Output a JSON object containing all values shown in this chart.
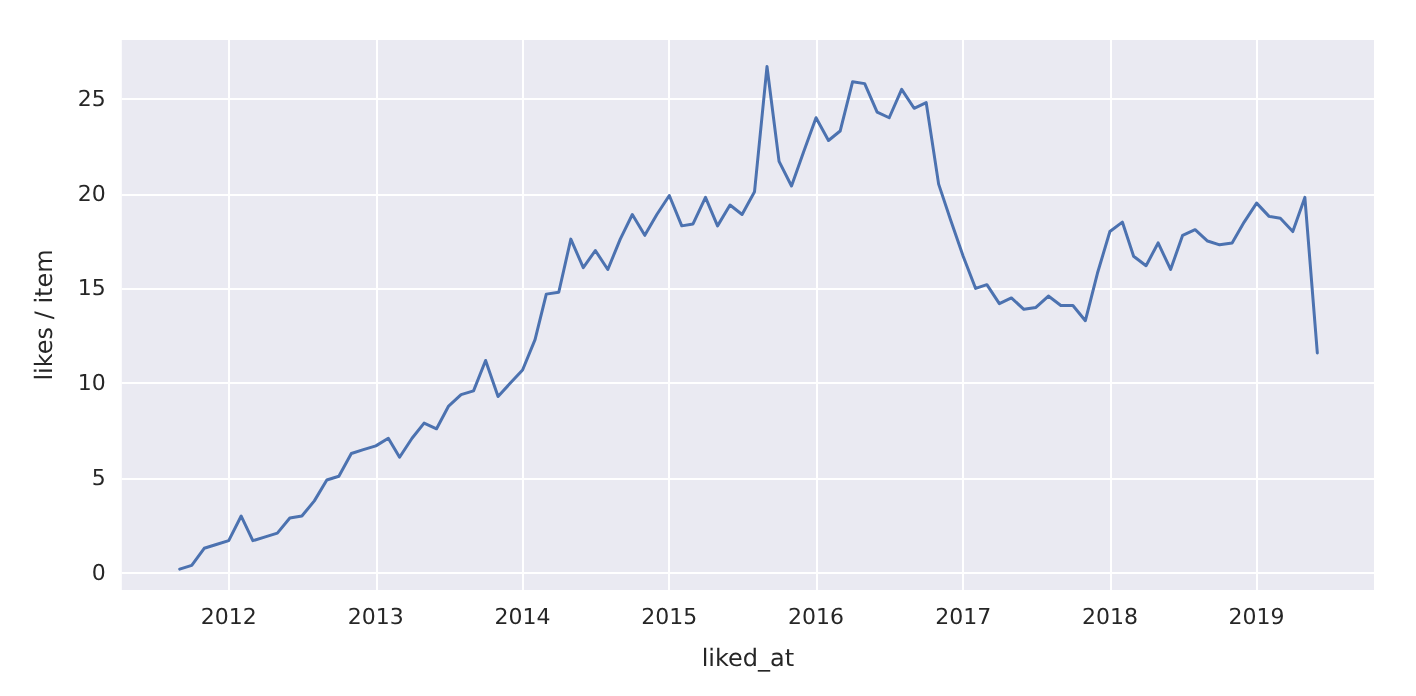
{
  "chart_data": {
    "type": "line",
    "xlabel": "liked_at",
    "ylabel": "likes / item",
    "x": [
      "2011-09",
      "2011-10",
      "2011-11",
      "2011-12",
      "2012-01",
      "2012-02",
      "2012-03",
      "2012-04",
      "2012-05",
      "2012-06",
      "2012-07",
      "2012-08",
      "2012-09",
      "2012-10",
      "2012-11",
      "2012-12",
      "2013-01",
      "2013-02",
      "2013-03",
      "2013-04",
      "2013-05",
      "2013-06",
      "2013-07",
      "2013-08",
      "2013-09",
      "2013-10",
      "2013-11",
      "2013-12",
      "2014-01",
      "2014-02",
      "2014-03",
      "2014-04",
      "2014-05",
      "2014-06",
      "2014-07",
      "2014-08",
      "2014-09",
      "2014-10",
      "2014-11",
      "2014-12",
      "2015-01",
      "2015-02",
      "2015-03",
      "2015-04",
      "2015-05",
      "2015-06",
      "2015-07",
      "2015-08",
      "2015-09",
      "2015-10",
      "2015-11",
      "2015-12",
      "2016-01",
      "2016-02",
      "2016-03",
      "2016-04",
      "2016-05",
      "2016-06",
      "2016-07",
      "2016-08",
      "2016-09",
      "2016-10",
      "2016-11",
      "2016-12",
      "2017-01",
      "2017-02",
      "2017-03",
      "2017-04",
      "2017-05",
      "2017-06",
      "2017-07",
      "2017-08",
      "2017-09",
      "2017-10",
      "2017-11",
      "2017-12",
      "2018-01",
      "2018-02",
      "2018-03",
      "2018-04",
      "2018-05",
      "2018-06",
      "2018-07",
      "2018-08",
      "2018-09",
      "2018-10",
      "2018-11",
      "2018-12",
      "2019-01",
      "2019-02",
      "2019-03",
      "2019-04",
      "2019-05",
      "2019-06"
    ],
    "series": [
      {
        "color": "#4c72b0",
        "values": [
          0.2,
          0.4,
          1.3,
          1.5,
          1.7,
          3.0,
          1.7,
          1.9,
          2.1,
          2.9,
          3.0,
          3.8,
          4.9,
          5.1,
          6.3,
          6.5,
          6.7,
          7.1,
          6.1,
          7.1,
          7.9,
          7.6,
          8.8,
          9.4,
          9.6,
          11.2,
          9.3,
          10.0,
          10.7,
          12.3,
          14.7,
          14.8,
          17.6,
          16.1,
          17.0,
          16.0,
          17.6,
          18.9,
          17.8,
          18.9,
          19.9,
          18.3,
          18.4,
          19.8,
          18.3,
          19.4,
          18.9,
          20.1,
          26.7,
          21.7,
          20.4,
          22.2,
          24.0,
          22.8,
          23.3,
          25.9,
          25.8,
          24.3,
          24.0,
          25.5,
          24.5,
          24.8,
          20.5,
          18.6,
          16.7,
          15.0,
          15.2,
          14.2,
          14.5,
          13.9,
          14.0,
          14.6,
          14.1,
          14.1,
          13.3,
          15.8,
          18.0,
          18.5,
          16.7,
          16.2,
          17.4,
          16.0,
          17.8,
          18.1,
          17.5,
          17.3,
          17.4,
          18.5,
          19.5,
          18.8,
          18.7,
          18.0,
          19.8,
          11.6
        ]
      }
    ],
    "xlim": [
      "2011-04-10",
      "2019-10-20"
    ],
    "xticks": [
      "2012",
      "2013",
      "2014",
      "2015",
      "2016",
      "2017",
      "2018",
      "2019"
    ],
    "ylim": [
      -0.9,
      28.1
    ],
    "yticks": [
      0,
      5,
      10,
      15,
      20,
      25
    ],
    "grid": true,
    "marker": "none",
    "line_style": "solid"
  }
}
